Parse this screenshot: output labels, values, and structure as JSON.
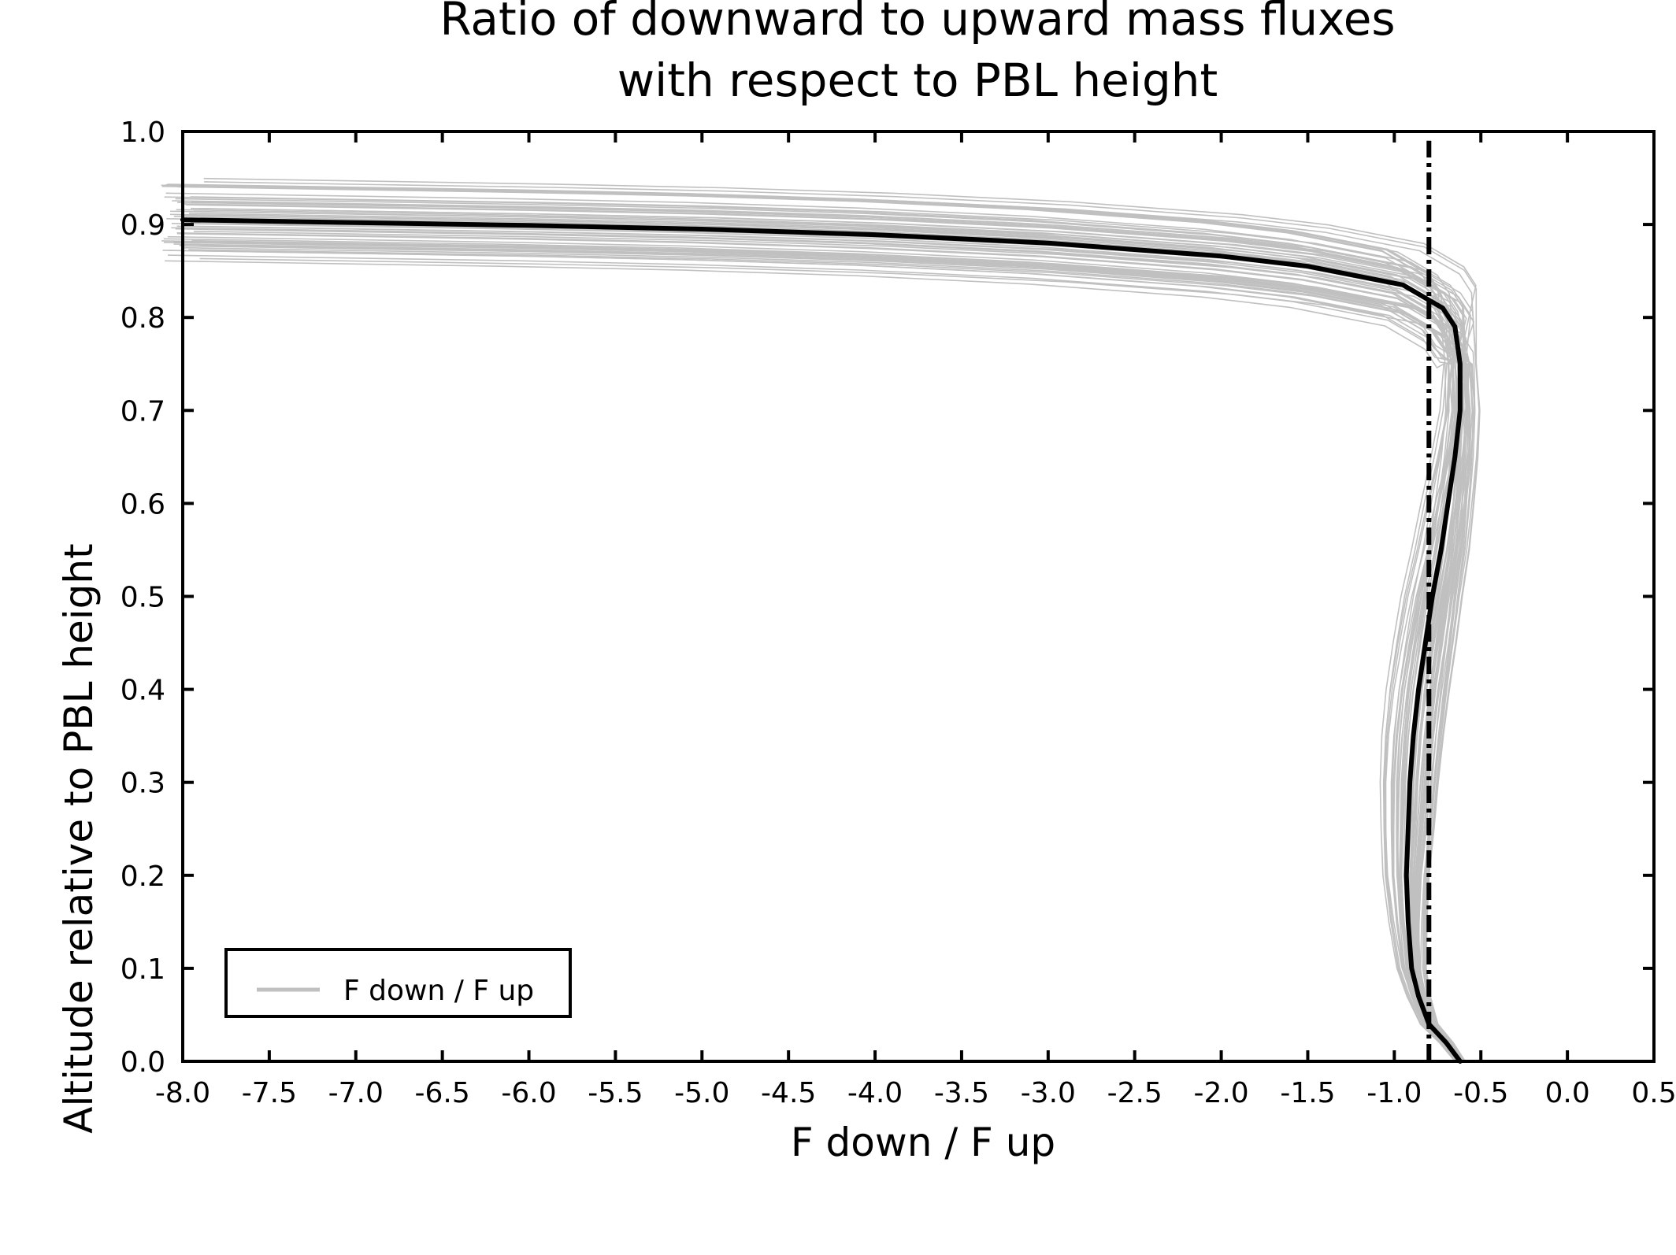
{
  "chart_data": {
    "type": "line",
    "title": [
      "Ratio of downward to upward mass fluxes",
      "with respect to PBL height"
    ],
    "xlabel": "F down / F up",
    "ylabel": "Altitude relative to PBL height",
    "xlim": [
      -8.0,
      0.5
    ],
    "ylim": [
      0.0,
      1.0
    ],
    "x_ticks": [
      "-8.0",
      "-7.5",
      "-7.0",
      "-6.5",
      "-6.0",
      "-5.5",
      "-5.0",
      "-4.5",
      "-4.0",
      "-3.5",
      "-3.0",
      "-2.5",
      "-2.0",
      "-1.5",
      "-1.0",
      "-0.5",
      "0.0",
      "0.5"
    ],
    "y_ticks": [
      "0.0",
      "0.1",
      "0.2",
      "0.3",
      "0.4",
      "0.5",
      "0.6",
      "0.7",
      "0.8",
      "0.9",
      "1.0"
    ],
    "grid": false,
    "legend": {
      "position": "lower-left",
      "entries": [
        "F down / F up"
      ]
    },
    "series": [
      {
        "name": "F down / F up",
        "style": "ensemble",
        "color": "#c0c0c0",
        "member_count": 60
      },
      {
        "style": "mean",
        "color": "#000000",
        "points": [
          [
            -0.62,
            0.0
          ],
          [
            -0.7,
            0.02
          ],
          [
            -0.8,
            0.04
          ],
          [
            -0.86,
            0.07
          ],
          [
            -0.9,
            0.1
          ],
          [
            -0.92,
            0.15
          ],
          [
            -0.93,
            0.2
          ],
          [
            -0.92,
            0.25
          ],
          [
            -0.91,
            0.3
          ],
          [
            -0.89,
            0.35
          ],
          [
            -0.86,
            0.4
          ],
          [
            -0.82,
            0.45
          ],
          [
            -0.78,
            0.5
          ],
          [
            -0.73,
            0.55
          ],
          [
            -0.69,
            0.6
          ],
          [
            -0.65,
            0.65
          ],
          [
            -0.62,
            0.7
          ],
          [
            -0.62,
            0.75
          ],
          [
            -0.65,
            0.79
          ],
          [
            -0.72,
            0.81
          ],
          [
            -0.95,
            0.835
          ],
          [
            -1.5,
            0.855
          ],
          [
            -2.0,
            0.866
          ],
          [
            -3.0,
            0.88
          ],
          [
            -4.0,
            0.889
          ],
          [
            -5.0,
            0.895
          ],
          [
            -6.0,
            0.899
          ],
          [
            -7.0,
            0.902
          ],
          [
            -8.0,
            0.905
          ]
        ]
      },
      {
        "style": "reference",
        "color": "#000000",
        "dash": "dash-dot",
        "x": -0.8
      }
    ]
  },
  "colors": {
    "ensemble": "#c0c0c0",
    "mean": "#000000",
    "axes": "#000000"
  }
}
